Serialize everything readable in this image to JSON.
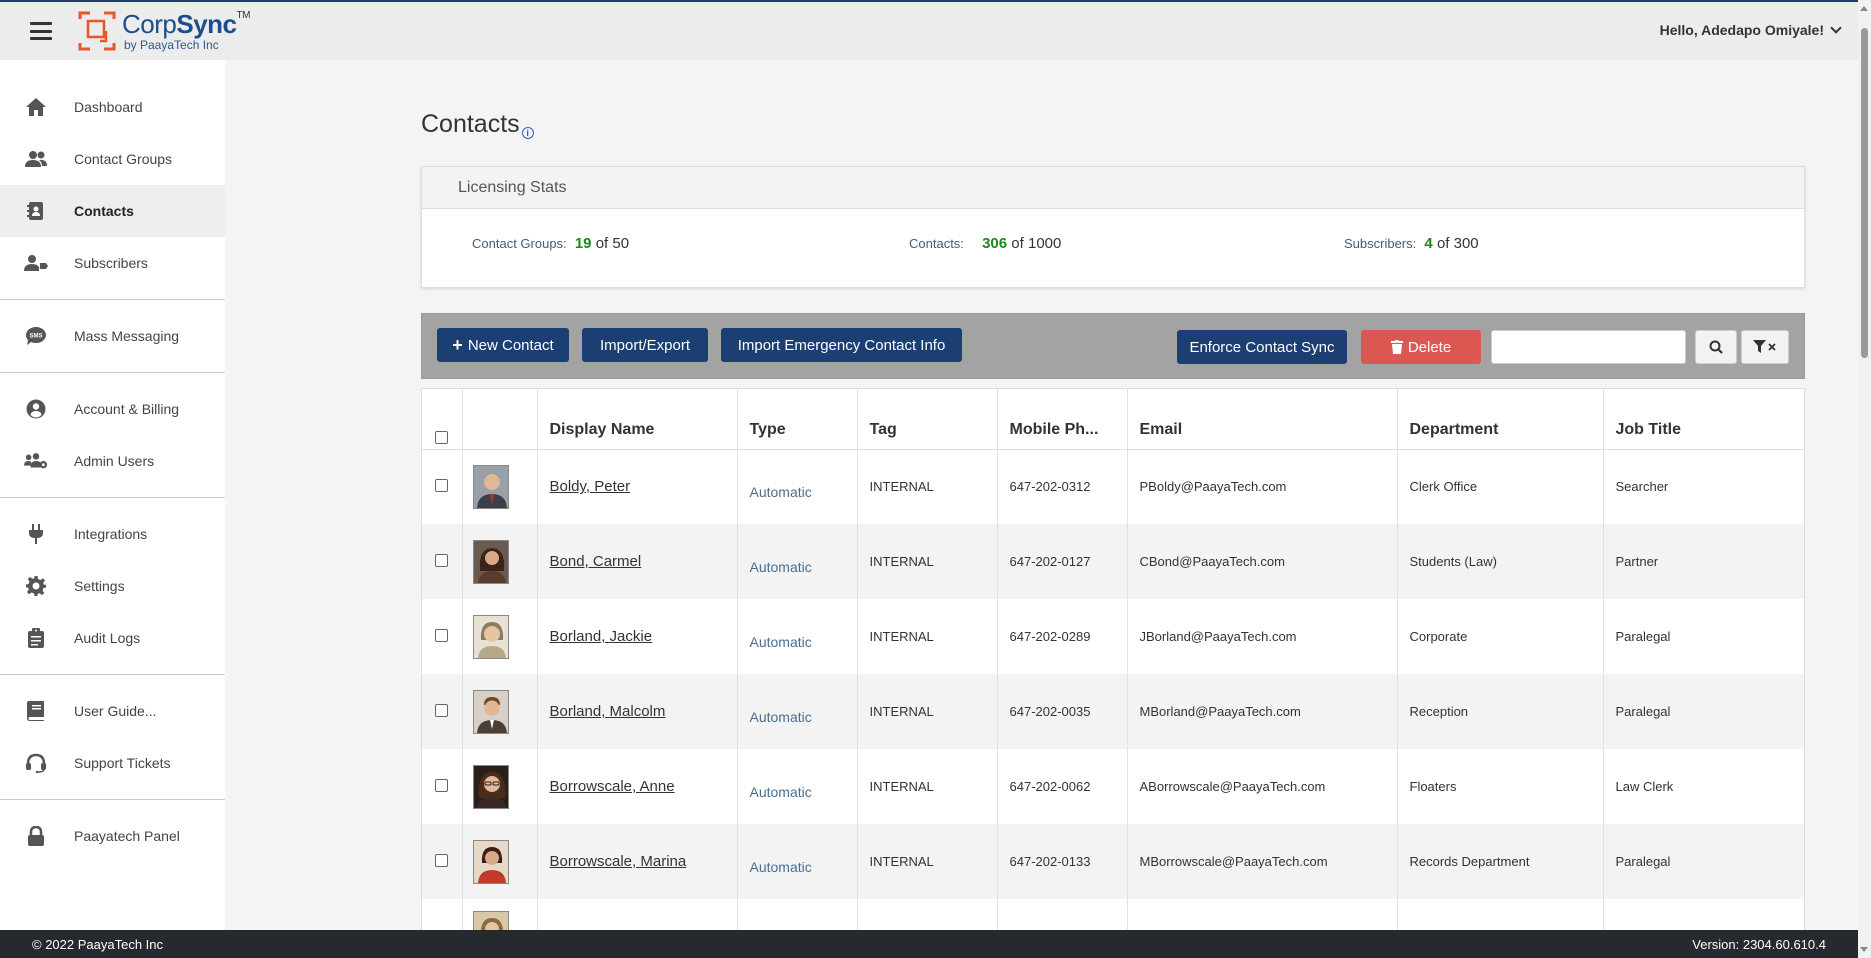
{
  "brand": {
    "name_light": "Corp",
    "name_bold": "Sync",
    "trademark": "TM",
    "sub": "by PaayaTech Inc"
  },
  "header": {
    "greeting": "Hello, Adedapo Omiyale!"
  },
  "sidebar": {
    "items": [
      {
        "label": "Dashboard",
        "icon": "home-icon"
      },
      {
        "label": "Contact Groups",
        "icon": "users-icon"
      },
      {
        "label": "Contacts",
        "icon": "address-book-icon",
        "active": true
      },
      {
        "label": "Subscribers",
        "icon": "user-tag-icon"
      },
      {
        "label": "Mass Messaging",
        "icon": "sms-icon"
      },
      {
        "label": "Account & Billing",
        "icon": "user-circle-icon"
      },
      {
        "label": "Admin Users",
        "icon": "users-gear-icon"
      },
      {
        "label": "Integrations",
        "icon": "plug-icon"
      },
      {
        "label": "Settings",
        "icon": "gear-icon"
      },
      {
        "label": "Audit Logs",
        "icon": "clipboard-icon"
      },
      {
        "label": "User Guide...",
        "icon": "book-icon"
      },
      {
        "label": "Support Tickets",
        "icon": "headset-icon"
      },
      {
        "label": "Paayatech Panel",
        "icon": "lock-icon"
      }
    ]
  },
  "page": {
    "title": "Contacts",
    "info": "i"
  },
  "licensing": {
    "heading": "Licensing Stats",
    "contact_groups": {
      "label": "Contact Groups:",
      "used": "19",
      "rest": "of 50"
    },
    "contacts": {
      "label": "Contacts:",
      "used": "306",
      "rest": "of 1000"
    },
    "subscribers": {
      "label": "Subscribers:",
      "used": "4",
      "rest": "of 300"
    }
  },
  "toolbar": {
    "new_contact": "New Contact",
    "import_export": "Import/Export",
    "import_emergency": "Import Emergency Contact Info",
    "enforce_sync": "Enforce Contact Sync",
    "delete": "Delete",
    "search_value": ""
  },
  "table": {
    "columns": [
      "Display Name",
      "Type",
      "Tag",
      "Mobile Ph...",
      "Email",
      "Department",
      "Job Title"
    ],
    "rows": [
      {
        "name": "Boldy, Peter",
        "type": "Automatic",
        "tag": "INTERNAL",
        "phone": "647-202-0312",
        "email": "PBoldy@PaayaTech.com",
        "dept": "Clerk Office",
        "title": "Searcher",
        "avatar": "#3a3f4a"
      },
      {
        "name": "Bond, Carmel",
        "type": "Automatic",
        "tag": "INTERNAL",
        "phone": "647-202-0127",
        "email": "CBond@PaayaTech.com",
        "dept": "Students (Law)",
        "title": "Partner",
        "avatar": "#5a3b2e"
      },
      {
        "name": "Borland, Jackie",
        "type": "Automatic",
        "tag": "INTERNAL",
        "phone": "647-202-0289",
        "email": "JBorland@PaayaTech.com",
        "dept": "Corporate",
        "title": "Paralegal",
        "avatar": "#b8a88a"
      },
      {
        "name": "Borland, Malcolm",
        "type": "Automatic",
        "tag": "INTERNAL",
        "phone": "647-202-0035",
        "email": "MBorland@PaayaTech.com",
        "dept": "Reception",
        "title": "Paralegal",
        "avatar": "#4a4035"
      },
      {
        "name": "Borrowscale, Anne",
        "type": "Automatic",
        "tag": "INTERNAL",
        "phone": "647-202-0062",
        "email": "ABorrowscale@PaayaTech.com",
        "dept": "Floaters",
        "title": "Law Clerk",
        "avatar": "#3b2a22"
      },
      {
        "name": "Borrowscale, Marina",
        "type": "Automatic",
        "tag": "INTERNAL",
        "phone": "647-202-0133",
        "email": "MBorrowscale@PaayaTech.com",
        "dept": "Records Department",
        "title": "Paralegal",
        "avatar": "#c0392b"
      }
    ]
  },
  "footer": {
    "copyright": "© 2022  PaayaTech Inc",
    "version": "Version: 2304.60.610.4"
  }
}
